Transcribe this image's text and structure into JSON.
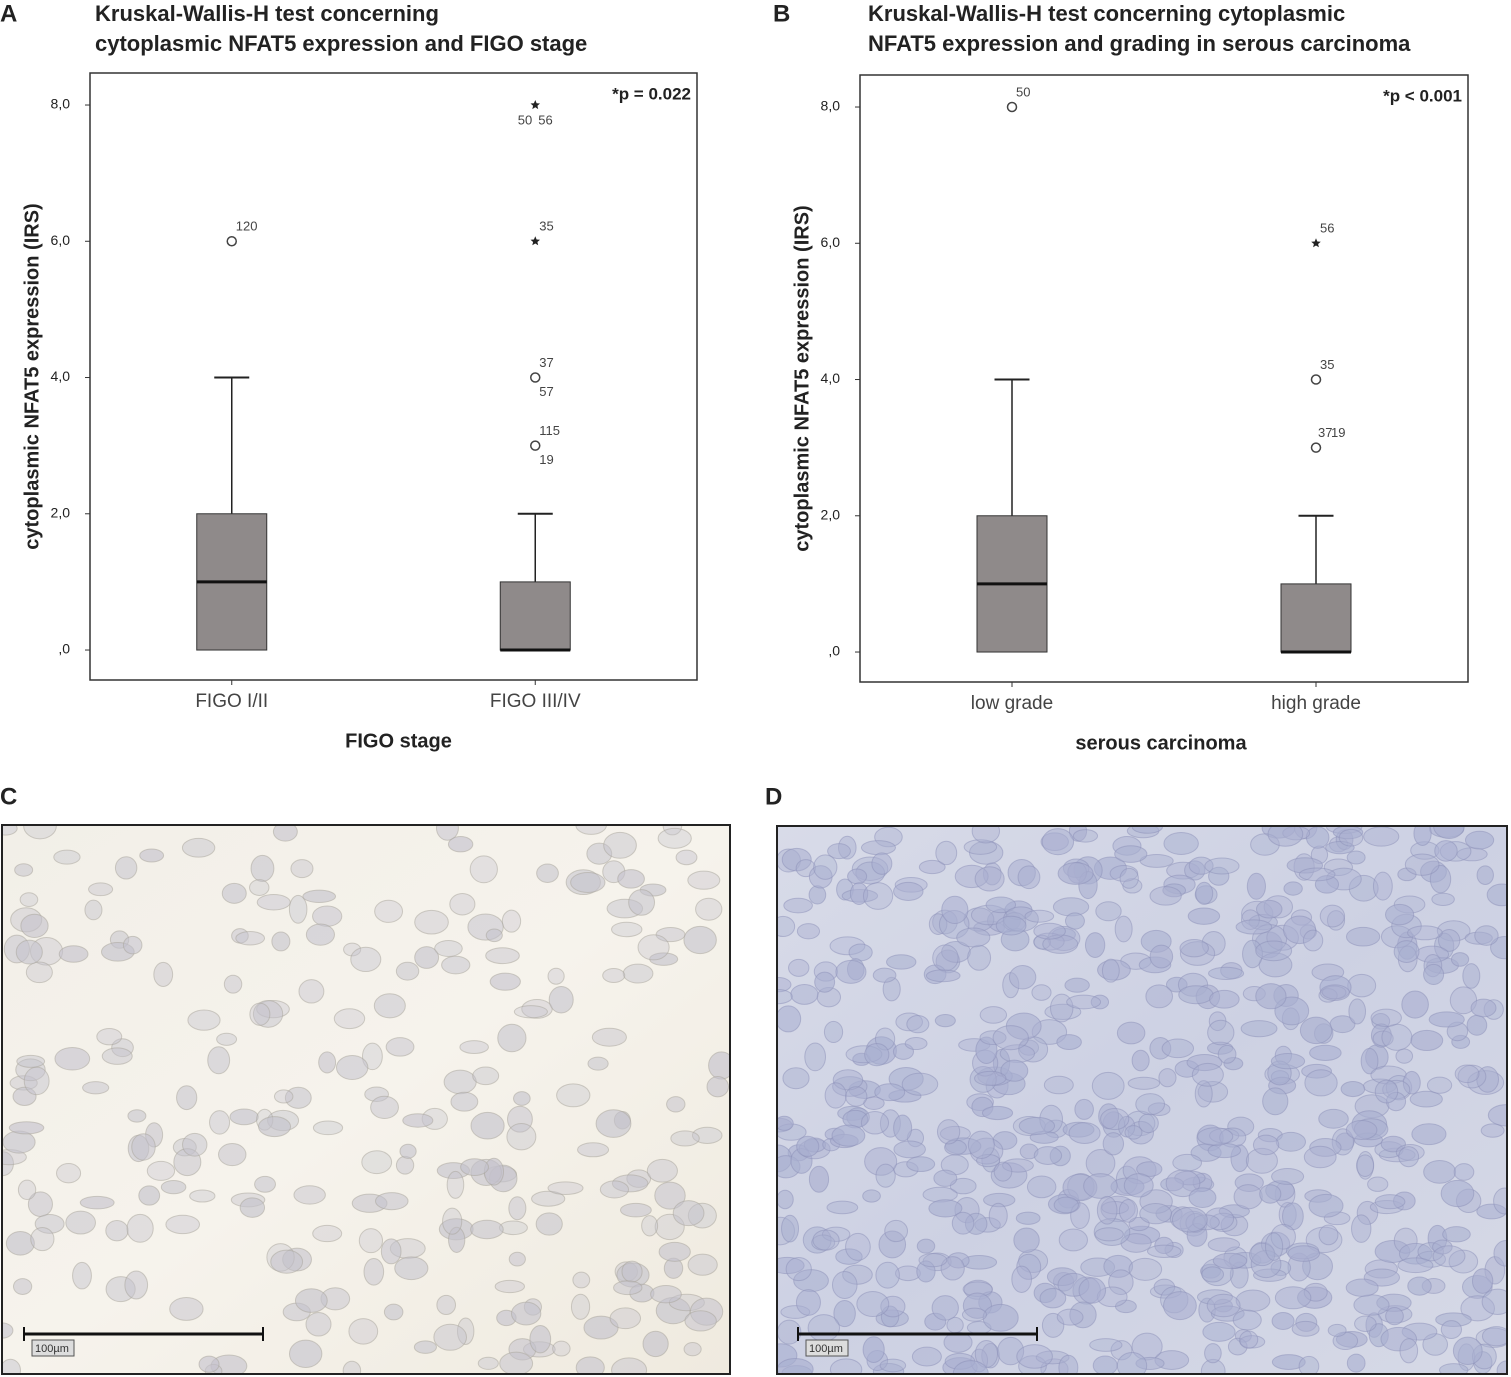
{
  "panel_labels": [
    "A",
    "B",
    "C",
    "D"
  ],
  "chart_data": [
    {
      "type": "boxplot",
      "title": [
        "Kruskal-Wallis-H test concerning",
        "cytoplasmic NFAT5 expression and FIGO stage"
      ],
      "annotation": "*p = 0.022",
      "x_label": "FIGO stage",
      "y_label": "cytoplasmic NFAT5 expression (IRS)",
      "box_color": "#8f8a8a",
      "categories": [
        "FIGO I/II",
        "FIGO III/IV"
      ],
      "boxes": [
        {
          "min": 0,
          "q1": 0,
          "median": 1,
          "q3": 2,
          "max": 4,
          "outliers": [
            {
              "value": 6,
              "marker": "circle",
              "labels": [
                "120"
              ]
            }
          ]
        },
        {
          "min": 0,
          "q1": 0,
          "median": 0,
          "q3": 1,
          "max": 2,
          "outliers": [
            {
              "value": 8,
              "marker": "star",
              "labels": [
                "50",
                "56"
              ]
            },
            {
              "value": 6,
              "marker": "star",
              "labels": [
                "35"
              ]
            },
            {
              "value": 4,
              "marker": "circle",
              "labels": [
                "37",
                "57"
              ]
            },
            {
              "value": 3,
              "marker": "circle",
              "labels": [
                "115",
                "19"
              ]
            }
          ]
        }
      ],
      "ylim": [
        -0.44,
        8.47
      ],
      "yticks": [
        {
          "value": 0,
          "label": ",0"
        },
        {
          "value": 2,
          "label": "2,0"
        },
        {
          "value": 4,
          "label": "4,0"
        },
        {
          "value": 6,
          "label": "6,0"
        },
        {
          "value": 8,
          "label": "8,0"
        }
      ]
    },
    {
      "type": "boxplot",
      "title": [
        "Kruskal-Wallis-H test concerning cytoplasmic",
        "NFAT5 expression and grading in serous carcinoma"
      ],
      "annotation": "*p < 0.001",
      "x_label": "serous carcinoma",
      "y_label": "cytoplasmic NFAT5 expression (IRS)",
      "box_color": "#8f8a8a",
      "categories": [
        "low grade",
        "high grade"
      ],
      "boxes": [
        {
          "min": 0,
          "q1": 0,
          "median": 1,
          "q3": 2,
          "max": 4,
          "outliers": [
            {
              "value": 8,
              "marker": "circle",
              "labels": [
                "50"
              ]
            }
          ]
        },
        {
          "min": 0,
          "q1": 0,
          "median": 0,
          "q3": 1,
          "max": 2,
          "outliers": [
            {
              "value": 6,
              "marker": "star",
              "labels": [
                "56"
              ]
            },
            {
              "value": 4,
              "marker": "circle",
              "labels": [
                "35"
              ]
            },
            {
              "value": 3,
              "marker": "circle",
              "labels": [
                "37",
                "19"
              ]
            }
          ]
        }
      ],
      "ylim": [
        -0.44,
        8.47
      ],
      "yticks": [
        {
          "value": 0,
          "label": ",0"
        },
        {
          "value": 2,
          "label": "2,0"
        },
        {
          "value": 4,
          "label": "4,0"
        },
        {
          "value": 6,
          "label": "6,0"
        },
        {
          "value": 8,
          "label": "8,0"
        }
      ]
    }
  ],
  "micrographs": [
    {
      "scale_label": "100µm"
    },
    {
      "scale_label": "100µm"
    }
  ]
}
